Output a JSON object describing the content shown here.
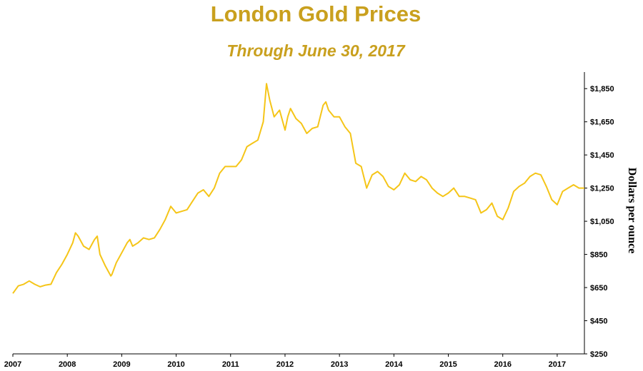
{
  "chart_data": {
    "type": "line",
    "title": "London Gold Prices",
    "subtitle": "Through June 30, 2017",
    "xlabel": "",
    "ylabel": "Dollars per ounce",
    "xlim": [
      2007.0,
      2017.5
    ],
    "ylim": [
      250,
      1950
    ],
    "x_ticks": [
      2007,
      2008,
      2009,
      2010,
      2011,
      2012,
      2013,
      2014,
      2015,
      2016,
      2017
    ],
    "x_tick_labels": [
      "2007",
      "2008",
      "2009",
      "2010",
      "2011",
      "2012",
      "2013",
      "2014",
      "2015",
      "2016",
      "2017"
    ],
    "y_ticks": [
      250,
      450,
      650,
      850,
      1050,
      1250,
      1450,
      1650,
      1850
    ],
    "y_tick_labels": [
      "$250",
      "$450",
      "$650",
      "$850",
      "$1,050",
      "$1,250",
      "$1,450",
      "$1,650",
      "$1,850"
    ],
    "y_axis_side": "right",
    "grid": false,
    "legend": "none",
    "series": [
      {
        "color": "#F5C518",
        "x": [
          2007.0,
          2007.1,
          2007.2,
          2007.3,
          2007.4,
          2007.5,
          2007.6,
          2007.7,
          2007.8,
          2007.9,
          2008.0,
          2008.1,
          2008.15,
          2008.2,
          2008.3,
          2008.4,
          2008.5,
          2008.55,
          2008.6,
          2008.7,
          2008.8,
          2008.82,
          2008.9,
          2009.0,
          2009.1,
          2009.15,
          2009.2,
          2009.3,
          2009.4,
          2009.5,
          2009.6,
          2009.7,
          2009.8,
          2009.9,
          2010.0,
          2010.1,
          2010.2,
          2010.3,
          2010.4,
          2010.5,
          2010.6,
          2010.7,
          2010.8,
          2010.9,
          2011.0,
          2011.1,
          2011.2,
          2011.3,
          2011.4,
          2011.5,
          2011.6,
          2011.66,
          2011.72,
          2011.8,
          2011.9,
          2012.0,
          2012.05,
          2012.1,
          2012.2,
          2012.3,
          2012.4,
          2012.5,
          2012.6,
          2012.7,
          2012.75,
          2012.8,
          2012.9,
          2013.0,
          2013.1,
          2013.2,
          2013.3,
          2013.4,
          2013.5,
          2013.6,
          2013.7,
          2013.8,
          2013.9,
          2014.0,
          2014.1,
          2014.2,
          2014.3,
          2014.4,
          2014.5,
          2014.6,
          2014.7,
          2014.8,
          2014.9,
          2015.0,
          2015.1,
          2015.2,
          2015.3,
          2015.4,
          2015.5,
          2015.6,
          2015.7,
          2015.8,
          2015.9,
          2016.0,
          2016.1,
          2016.2,
          2016.3,
          2016.4,
          2016.5,
          2016.6,
          2016.7,
          2016.8,
          2016.9,
          2017.0,
          2017.1,
          2017.2,
          2017.3,
          2017.4,
          2017.5
        ],
        "y": [
          615,
          660,
          670,
          690,
          670,
          655,
          665,
          670,
          740,
          790,
          850,
          920,
          980,
          960,
          900,
          880,
          940,
          960,
          850,
          780,
          720,
          730,
          800,
          860,
          920,
          940,
          900,
          920,
          950,
          940,
          950,
          1000,
          1060,
          1140,
          1100,
          1110,
          1120,
          1170,
          1220,
          1240,
          1200,
          1250,
          1340,
          1380,
          1380,
          1380,
          1420,
          1500,
          1520,
          1540,
          1650,
          1880,
          1780,
          1680,
          1720,
          1600,
          1680,
          1730,
          1670,
          1640,
          1580,
          1610,
          1620,
          1750,
          1770,
          1720,
          1680,
          1680,
          1620,
          1580,
          1400,
          1380,
          1250,
          1330,
          1350,
          1320,
          1260,
          1240,
          1270,
          1340,
          1300,
          1290,
          1320,
          1300,
          1250,
          1220,
          1200,
          1220,
          1250,
          1200,
          1200,
          1190,
          1180,
          1100,
          1120,
          1160,
          1080,
          1060,
          1130,
          1230,
          1260,
          1280,
          1320,
          1340,
          1330,
          1260,
          1180,
          1150,
          1230,
          1250,
          1270,
          1250,
          1250
        ]
      }
    ]
  }
}
